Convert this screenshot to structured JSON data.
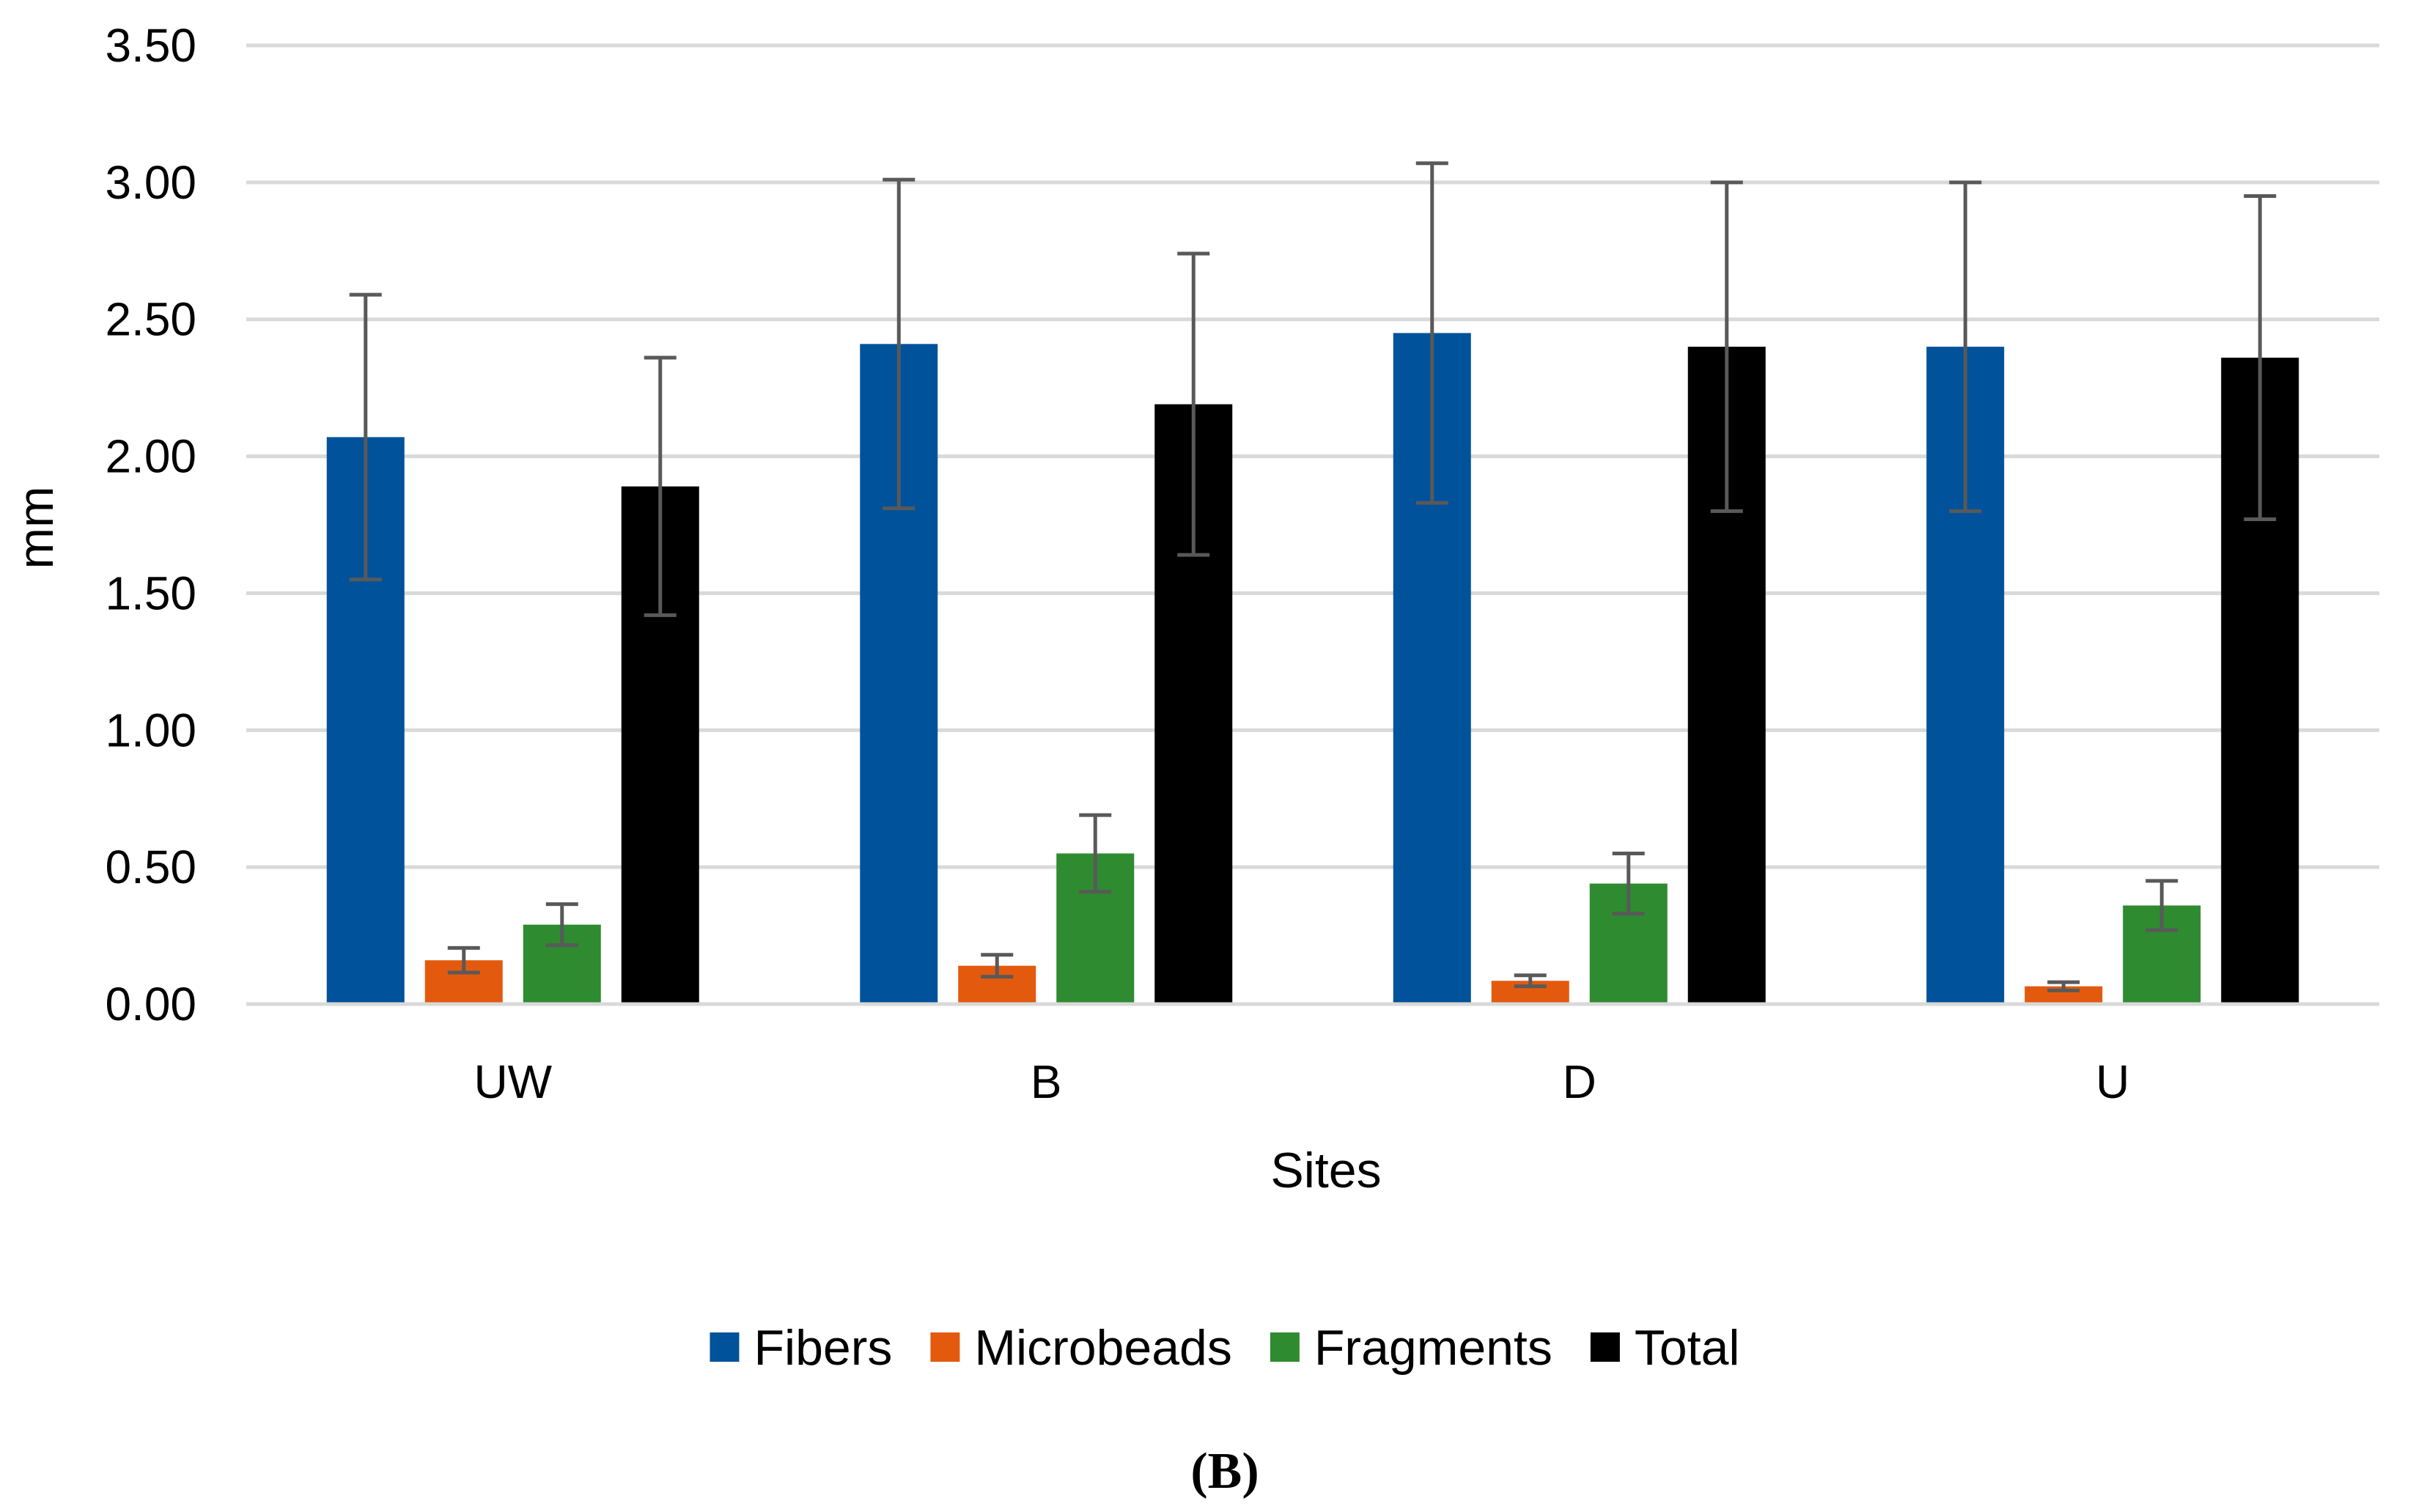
{
  "chart_data": {
    "type": "bar",
    "title": "",
    "xlabel": "Sites",
    "ylabel": "mm",
    "panel_label": "(B)",
    "ylim": [
      0,
      3.5
    ],
    "y_ticks": [
      "0.00",
      "0.50",
      "1.00",
      "1.50",
      "2.00",
      "2.50",
      "3.00",
      "3.50"
    ],
    "grid": true,
    "legend_position": "bottom",
    "categories": [
      "UW",
      "B",
      "D",
      "U"
    ],
    "series": [
      {
        "name": "Fibers",
        "color": "#00529b",
        "values": [
          2.07,
          2.41,
          2.45,
          2.4
        ],
        "error": [
          0.52,
          0.6,
          0.62,
          0.6
        ]
      },
      {
        "name": "Microbeads",
        "color": "#e35a0e",
        "values": [
          0.16,
          0.14,
          0.085,
          0.065
        ],
        "error": [
          0.045,
          0.04,
          0.02,
          0.015
        ]
      },
      {
        "name": "Fragments",
        "color": "#2e8b30",
        "values": [
          0.29,
          0.55,
          0.44,
          0.36
        ],
        "error": [
          0.075,
          0.14,
          0.11,
          0.09
        ]
      },
      {
        "name": "Total",
        "color": "#000000",
        "values": [
          1.89,
          2.19,
          2.4,
          2.36
        ],
        "error": [
          0.47,
          0.55,
          0.6,
          0.59
        ]
      }
    ]
  }
}
